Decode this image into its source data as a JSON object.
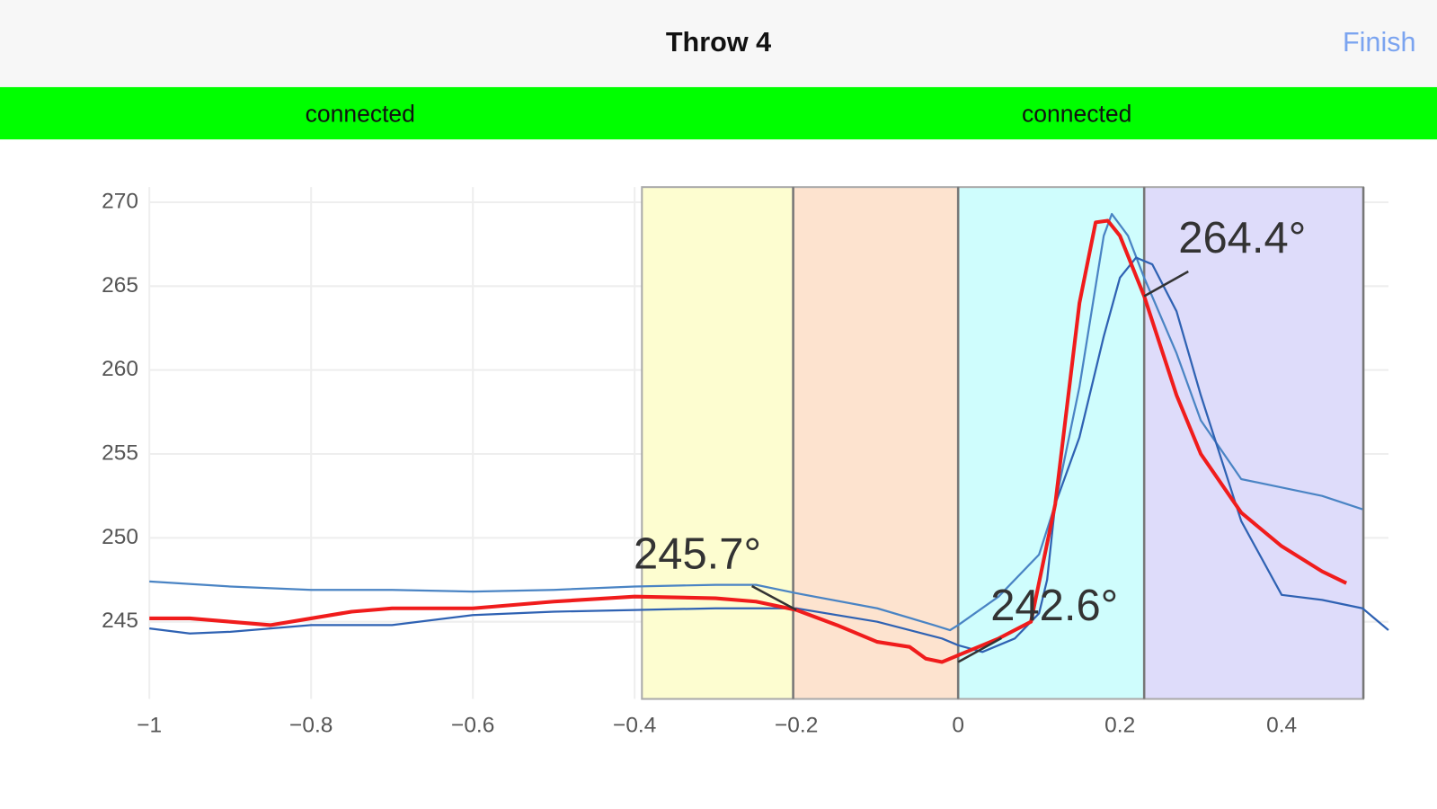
{
  "header": {
    "title": "Throw 4",
    "action": "Finish"
  },
  "status": [
    "connected",
    "connected"
  ],
  "chart_data": {
    "type": "line",
    "xlim": [
      -1,
      0.532
    ],
    "ylim": [
      240.4,
      270.9
    ],
    "xticks": [
      {
        "value": -1,
        "label": "−1"
      },
      {
        "value": -0.8,
        "label": "−0.8"
      },
      {
        "value": -0.6,
        "label": "−0.6"
      },
      {
        "value": -0.4,
        "label": "−0.4"
      },
      {
        "value": -0.2,
        "label": "−0.2"
      },
      0,
      0.2,
      0.4
    ],
    "yticks": [
      245,
      250,
      255,
      260,
      265,
      270
    ],
    "grid": true,
    "bands": [
      {
        "x0": -0.391,
        "x1": -0.204,
        "color": "#fdfdd0"
      },
      {
        "x0": -0.204,
        "x1": 0,
        "color": "#fde3cf"
      },
      {
        "x0": 0,
        "x1": 0.23,
        "color": "#cffdfd"
      },
      {
        "x0": 0.23,
        "x1": 0.501,
        "color": "#dedcfa"
      }
    ],
    "series": [
      {
        "color": "#4a84c4",
        "x": [
          -1,
          -0.9,
          -0.8,
          -0.7,
          -0.6,
          -0.5,
          -0.4,
          -0.3,
          -0.25,
          -0.2,
          -0.1,
          -0.03,
          -0.01,
          0,
          0.05,
          0.1,
          0.12,
          0.15,
          0.18,
          0.19,
          0.21,
          0.23,
          0.27,
          0.3,
          0.35,
          0.4,
          0.45,
          0.5
        ],
        "values": [
          247.4,
          247.1,
          246.9,
          246.9,
          246.8,
          246.9,
          247.1,
          247.2,
          247.2,
          246.7,
          245.8,
          244.8,
          244.5,
          244.8,
          246.5,
          249,
          252,
          259,
          268,
          269.3,
          268,
          265.5,
          261,
          257,
          253.5,
          253,
          252.5,
          251.7
        ]
      },
      {
        "color": "#2f62b3",
        "x": [
          -1,
          -0.95,
          -0.9,
          -0.8,
          -0.7,
          -0.6,
          -0.5,
          -0.4,
          -0.3,
          -0.2,
          -0.1,
          -0.02,
          0,
          0.03,
          0.07,
          0.1,
          0.11,
          0.12,
          0.15,
          0.18,
          0.2,
          0.22,
          0.24,
          0.27,
          0.3,
          0.35,
          0.4,
          0.45,
          0.5,
          0.532
        ],
        "values": [
          244.6,
          244.3,
          244.4,
          244.8,
          244.8,
          245.4,
          245.6,
          245.7,
          245.8,
          245.8,
          245,
          244,
          243.6,
          243.2,
          244,
          245.5,
          247.5,
          252,
          256,
          262,
          265.5,
          266.7,
          266.3,
          263.5,
          258.5,
          251,
          246.6,
          246.3,
          245.8,
          244.5
        ]
      },
      {
        "color": "#f01c1c",
        "x": [
          -1,
          -0.95,
          -0.9,
          -0.85,
          -0.8,
          -0.75,
          -0.7,
          -0.6,
          -0.5,
          -0.4,
          -0.3,
          -0.25,
          -0.2,
          -0.15,
          -0.1,
          -0.06,
          -0.04,
          -0.02,
          0,
          0.05,
          0.09,
          0.12,
          0.15,
          0.17,
          0.185,
          0.2,
          0.23,
          0.27,
          0.3,
          0.35,
          0.4,
          0.45,
          0.48
        ],
        "values": [
          245.2,
          245.2,
          245,
          244.8,
          245.2,
          245.6,
          245.8,
          245.8,
          246.2,
          246.5,
          246.4,
          246.2,
          245.7,
          244.8,
          243.8,
          243.5,
          242.8,
          242.6,
          243,
          244,
          245,
          252,
          264,
          268.8,
          268.9,
          268,
          264.4,
          258.5,
          255,
          251.5,
          249.5,
          248,
          247.3
        ]
      }
    ],
    "annotations": [
      {
        "text": "245.7°",
        "x": -0.2,
        "y": 245.7
      },
      {
        "text": "242.6°",
        "x": 0,
        "y": 242.6
      },
      {
        "text": "264.4°",
        "x": 0.23,
        "y": 264.4
      }
    ]
  }
}
